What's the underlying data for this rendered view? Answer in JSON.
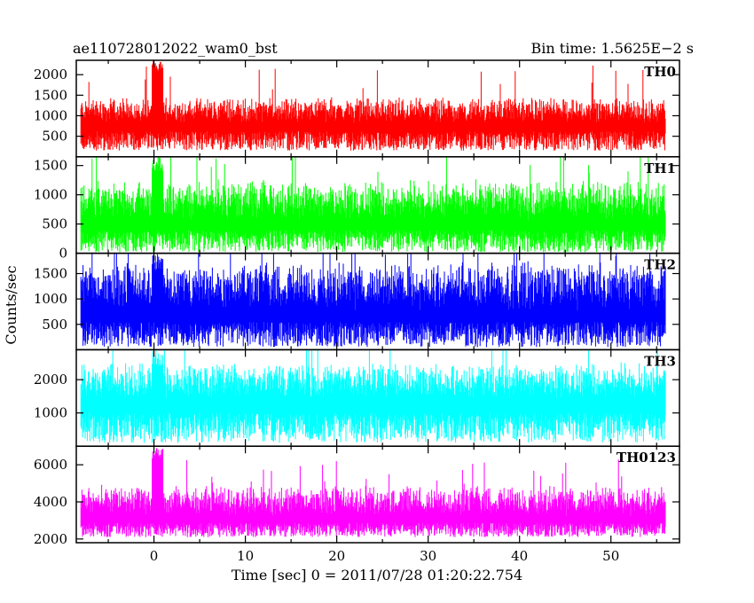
{
  "header": {
    "title": "ae110728012022_wam0_bst",
    "bin_time": "Bin time: 1.5625E−2 s"
  },
  "chart_data": {
    "type": "line",
    "xlabel": "Time [sec] 0 = 2011/07/28 01:20:22.754",
    "ylabel": "Counts/sec",
    "xlim": [
      -8.5,
      57.5
    ],
    "xticks": [
      0,
      10,
      20,
      30,
      40,
      50
    ],
    "x_range_data": [
      -8.0,
      56.0
    ],
    "bin_time_sec": 0.015625,
    "grid": false,
    "panels": [
      {
        "name": "TH0",
        "color": "#ff0000",
        "ylim": [
          0,
          2350
        ],
        "yticks": [
          500,
          1000,
          1500,
          2000
        ],
        "baseline_mean": 820,
        "typical_peak": 1500,
        "typical_trough": 150,
        "burst": {
          "time": 0.4,
          "peak": 2350
        }
      },
      {
        "name": "TH1",
        "color": "#00ff00",
        "ylim": [
          0,
          1650
        ],
        "yticks": [
          0,
          500,
          1000,
          1500
        ],
        "baseline_mean": 560,
        "typical_peak": 1300,
        "typical_trough": 20,
        "burst": {
          "time": 0.4,
          "peak": 1650
        }
      },
      {
        "name": "TH2",
        "color": "#0000ff",
        "ylim": [
          0,
          1900
        ],
        "yticks": [
          500,
          1000,
          1500
        ],
        "baseline_mean": 760,
        "typical_peak": 1800,
        "typical_trough": 50,
        "burst": {
          "time": 0.4,
          "peak": 1900
        }
      },
      {
        "name": "TH3",
        "color": "#00ffff",
        "ylim": [
          0,
          2900
        ],
        "yticks": [
          1000,
          2000
        ],
        "baseline_mean": 1400,
        "typical_peak": 2600,
        "typical_trough": 100,
        "burst": {
          "time": 0.4,
          "peak": 2900
        }
      },
      {
        "name": "TH0123",
        "color": "#ff00ff",
        "ylim": [
          1800,
          7000
        ],
        "yticks": [
          2000,
          4000,
          6000
        ],
        "baseline_mean": 3200,
        "typical_peak": 5000,
        "typical_trough": 2100,
        "burst": {
          "time": 0.4,
          "peak": 6900
        }
      }
    ]
  }
}
